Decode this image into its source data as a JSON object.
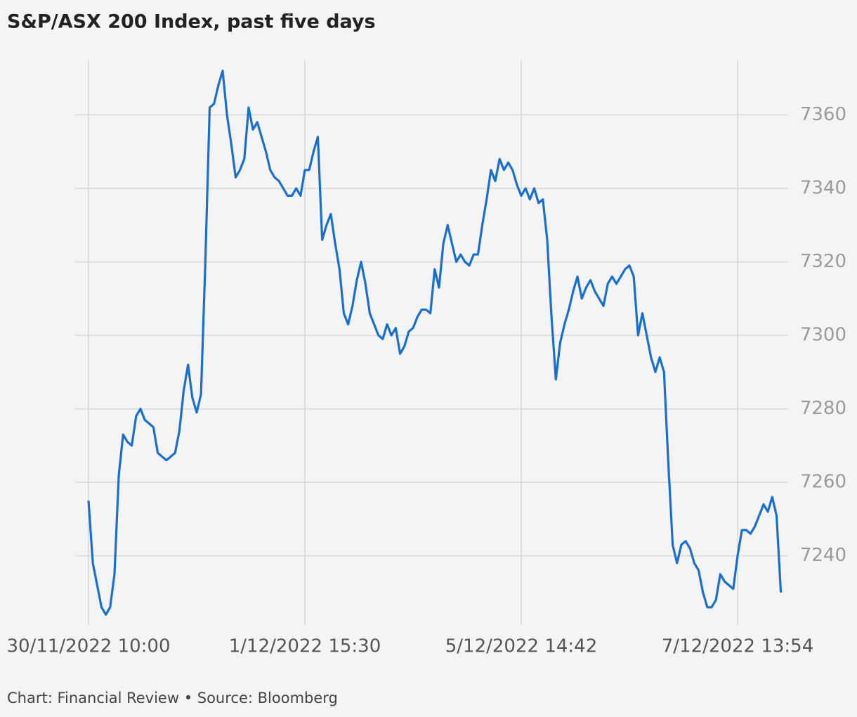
{
  "chart_data": {
    "type": "line",
    "title": "S&P/ASX 200 Index, past five days",
    "source": "Chart: Financial Review • Source: Bloomberg",
    "color": "#1a6fcc",
    "categories": [
      "30/11/2022 10:00",
      null,
      null,
      null,
      null,
      null,
      null,
      null,
      null,
      null,
      null,
      null,
      null,
      null,
      null,
      null,
      null,
      null,
      null,
      null,
      null,
      null,
      null,
      null,
      null,
      null,
      null,
      null,
      null,
      null,
      null,
      null,
      null,
      null,
      null,
      null,
      null,
      null,
      null,
      null,
      null,
      null,
      null,
      null,
      null,
      null,
      null,
      null,
      null,
      null,
      "1/12/2022 15:30",
      null,
      null,
      null,
      null,
      null,
      null,
      null,
      null,
      null,
      null,
      null,
      null,
      null,
      null,
      null,
      null,
      null,
      null,
      null,
      null,
      null,
      null,
      null,
      null,
      null,
      null,
      null,
      null,
      null,
      null,
      null,
      null,
      null,
      null,
      null,
      null,
      null,
      null,
      null,
      null,
      null,
      null,
      null,
      null,
      null,
      null,
      null,
      null,
      null,
      "5/12/2022 14:42",
      null,
      null,
      null,
      null,
      null,
      null,
      null,
      null,
      null,
      null,
      null,
      null,
      null,
      null,
      null,
      null,
      null,
      null,
      null,
      null,
      null,
      null,
      null,
      null,
      null,
      null,
      null,
      null,
      null,
      null,
      null,
      null,
      null,
      null,
      null,
      null,
      null,
      null,
      null,
      null,
      null,
      null,
      null,
      null,
      null,
      null,
      null,
      null,
      null,
      "7/12/2022 13:54",
      null,
      null,
      null,
      null,
      null,
      null,
      null,
      null,
      null,
      null
    ],
    "values": [
      7255,
      7238,
      7232,
      7226,
      7224,
      7226,
      7235,
      7262,
      7273,
      7271,
      7270,
      7278,
      7280,
      7277,
      7276,
      7275,
      7268,
      7267,
      7266,
      7267,
      7268,
      7274,
      7285,
      7292,
      7283,
      7279,
      7284,
      7320,
      7362,
      7363,
      7368,
      7372,
      7360,
      7352,
      7343,
      7345,
      7348,
      7362,
      7356,
      7358,
      7354,
      7350,
      7345,
      7343,
      7342,
      7340,
      7338,
      7338,
      7340,
      7338,
      7345,
      7345,
      7350,
      7354,
      7326,
      7330,
      7333,
      7325,
      7318,
      7306,
      7303,
      7308,
      7315,
      7320,
      7314,
      7306,
      7303,
      7300,
      7299,
      7303,
      7300,
      7302,
      7295,
      7297,
      7301,
      7302,
      7305,
      7307,
      7307,
      7306,
      7318,
      7313,
      7325,
      7330,
      7325,
      7320,
      7322,
      7320,
      7319,
      7322,
      7322,
      7330,
      7337,
      7345,
      7342,
      7348,
      7345,
      7347,
      7345,
      7341,
      7338,
      7340,
      7337,
      7340,
      7336,
      7337,
      7326,
      7305,
      7288,
      7298,
      7303,
      7307,
      7312,
      7316,
      7310,
      7313,
      7315,
      7312,
      7310,
      7308,
      7314,
      7316,
      7314,
      7316,
      7318,
      7319,
      7316,
      7300,
      7306,
      7300,
      7294,
      7290,
      7294,
      7290,
      7265,
      7243,
      7238,
      7243,
      7244,
      7242,
      7238,
      7236,
      7230,
      7226,
      7226,
      7228,
      7235,
      7233,
      7232,
      7231,
      7240,
      7247,
      7247,
      7246,
      7248,
      7251,
      7254,
      7252,
      7256,
      7251,
      7230
    ],
    "ylim": [
      7221,
      7375
    ],
    "yticks": [
      7240,
      7260,
      7280,
      7300,
      7320,
      7340,
      7360
    ],
    "grid": true
  }
}
